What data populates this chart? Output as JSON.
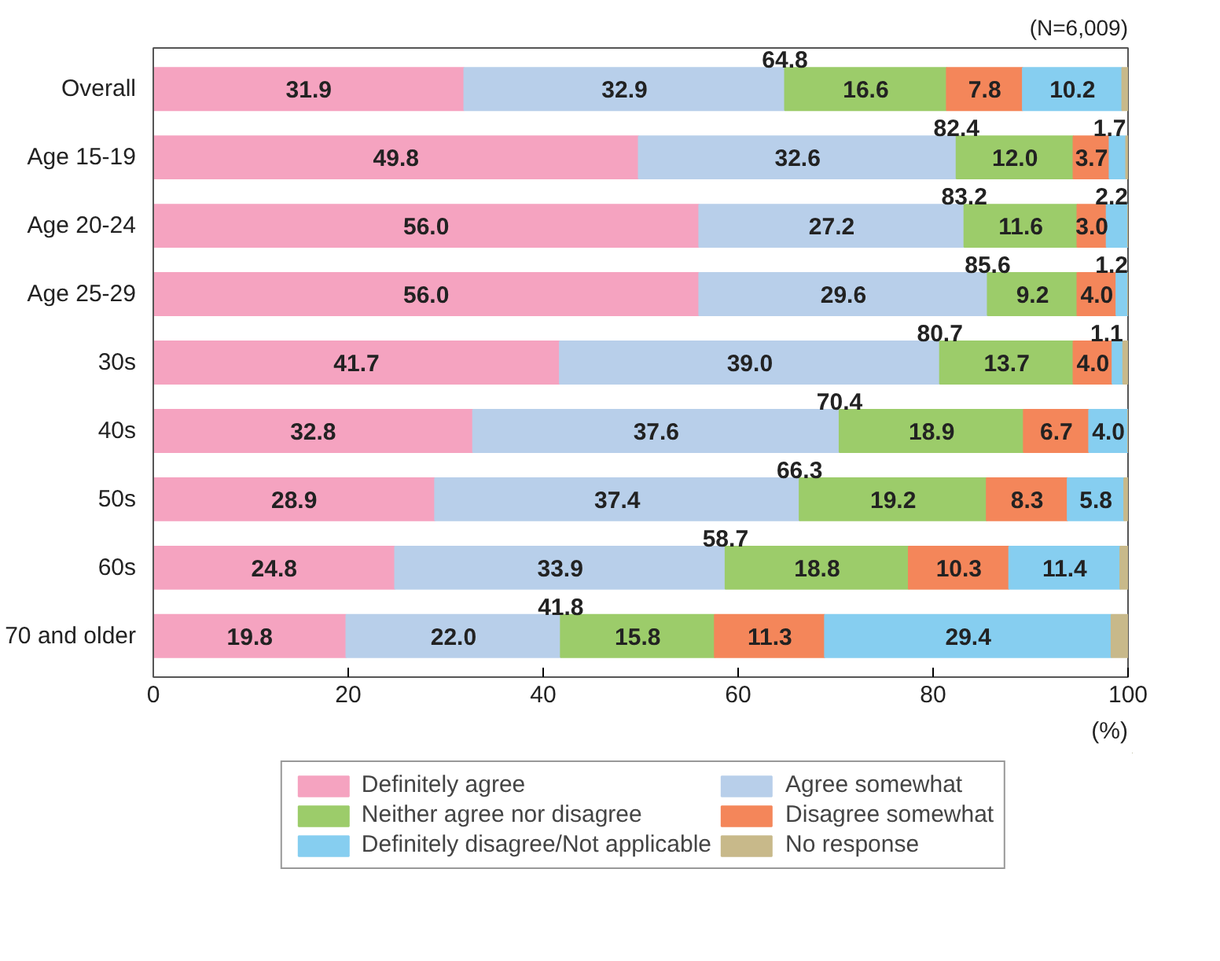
{
  "chart_data": {
    "type": "bar",
    "orientation": "horizontal",
    "stacked": true,
    "categories": [
      "Overall",
      "Age 15-19",
      "Age 20-24",
      "Age 25-29",
      "30s",
      "40s",
      "50s",
      "60s",
      "70 and older"
    ],
    "series": [
      {
        "name": "Definitely agree",
        "color": "#f5a3c0",
        "values": [
          31.9,
          49.8,
          56.0,
          56.0,
          41.7,
          32.8,
          28.9,
          24.8,
          19.8
        ],
        "value_labels": [
          "31.9",
          "49.8",
          "56.0",
          "56.0",
          "41.7",
          "32.8",
          "28.9",
          "24.8",
          "19.8"
        ]
      },
      {
        "name": "Agree somewhat",
        "color": "#b8cfea",
        "values": [
          32.9,
          32.6,
          27.2,
          29.6,
          39.0,
          37.6,
          37.4,
          33.9,
          22.0
        ],
        "value_labels": [
          "32.9",
          "32.6",
          "27.2",
          "29.6",
          "39.0",
          "37.6",
          "37.4",
          "33.9",
          "22.0"
        ]
      },
      {
        "name": "Neither agree nor disagree",
        "color": "#9ccc6a",
        "values": [
          16.6,
          12.0,
          11.6,
          9.2,
          13.7,
          18.9,
          19.2,
          18.8,
          15.8
        ],
        "value_labels": [
          "16.6",
          "12.0",
          "11.6",
          "9.2",
          "13.7",
          "18.9",
          "19.2",
          "18.8",
          "15.8"
        ]
      },
      {
        "name": "Disagree somewhat",
        "color": "#f4865a",
        "values": [
          7.8,
          3.7,
          3.0,
          4.0,
          4.0,
          6.7,
          8.3,
          10.3,
          11.3
        ],
        "value_labels": [
          "7.8",
          "3.7",
          "3.0",
          "4.0",
          "4.0",
          "6.7",
          "8.3",
          "10.3",
          "11.3"
        ]
      },
      {
        "name": "Definitely disagree/Not applicable",
        "color": "#86cef0",
        "values": [
          10.2,
          1.7,
          2.2,
          1.2,
          1.1,
          4.0,
          5.8,
          11.4,
          29.4
        ],
        "value_labels": [
          "10.2",
          "1.7",
          "2.2",
          "1.2",
          "1.1",
          "4.0",
          "5.8",
          "11.4",
          "29.4"
        ]
      },
      {
        "name": "No response",
        "color": "#c8b98a",
        "values": [
          0.6,
          0.2,
          0.0,
          0.0,
          0.5,
          0.0,
          0.4,
          0.8,
          1.7
        ]
      }
    ],
    "xlim": [
      0,
      100
    ],
    "xticks": [
      0,
      20,
      40,
      60,
      80,
      100
    ],
    "xlabel": "(%)",
    "grid": false,
    "legend": "bottom",
    "annotations": [
      "(N=6,009)",
      {
        "text": "64.8",
        "x": 64.8,
        "y": "Overall"
      },
      {
        "text": "82.4",
        "x": 82.4,
        "y": "Age 15-19"
      },
      {
        "text": "83.2",
        "x": 83.2,
        "y": "Age 20-24"
      },
      {
        "text": "85.6",
        "x": 85.6,
        "y": "Age 25-29"
      },
      {
        "text": "80.7",
        "x": 80.7,
        "y": "30s"
      },
      {
        "text": "70.4",
        "x": 70.4,
        "y": "40s"
      },
      {
        "text": "66.3",
        "x": 66.3,
        "y": "50s"
      },
      {
        "text": "58.7",
        "x": 58.7,
        "y": "60s"
      },
      {
        "text": "41.8",
        "x": 41.8,
        "y": "70 and older"
      }
    ]
  }
}
